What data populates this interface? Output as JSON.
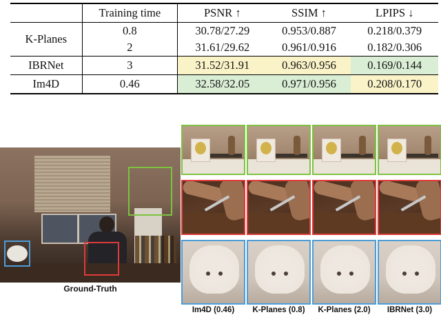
{
  "table": {
    "headers": [
      "",
      "Training time",
      "PSNR ↑",
      "SSIM ↑",
      "LPIPS ↓"
    ],
    "rows": [
      {
        "method": "K-Planes",
        "time_a": "0.8",
        "psnr_a": "30.78/27.29",
        "ssim_a": "0.953/0.887",
        "lpips_a": "0.218/0.379",
        "time_b": "2",
        "psnr_b": "31.61/29.62",
        "ssim_b": "0.961/0.916",
        "lpips_b": "0.182/0.306"
      },
      {
        "method": "IBRNet",
        "time": "3",
        "psnr": "31.52/31.91",
        "ssim": "0.963/0.956",
        "lpips": "0.169/0.144"
      },
      {
        "method": "Im4D",
        "time": "0.46",
        "psnr": "32.58/32.05",
        "ssim": "0.971/0.956",
        "lpips": "0.208/0.170"
      }
    ],
    "highlight_colors": {
      "yellow": "#fbf3c8",
      "green": "#d9eed4"
    }
  },
  "figure": {
    "main_caption": "Ground-Truth",
    "crop_captions": [
      "Im4D (0.46)",
      "K-Planes (0.8)",
      "K-Planes (2.0)",
      "IBRNet (3.0)"
    ],
    "box_colors": {
      "green": "#7dc240",
      "red": "#e03a3a",
      "blue": "#4d9dd8"
    }
  }
}
